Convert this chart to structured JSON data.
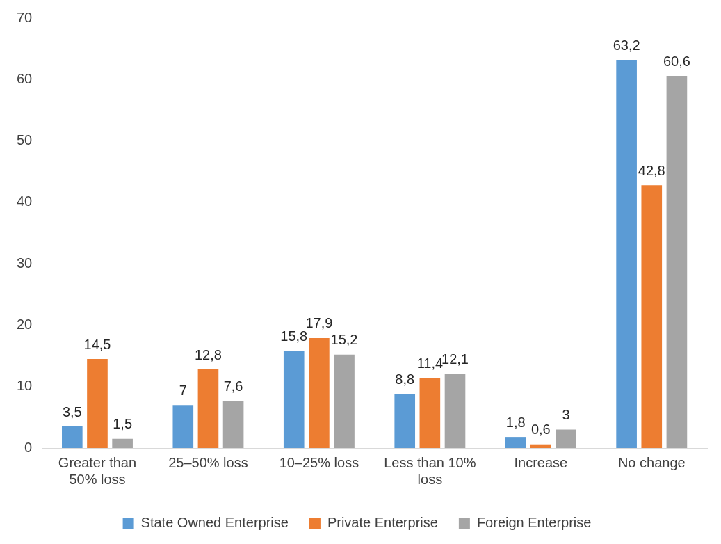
{
  "chart_data": {
    "type": "bar",
    "categories": [
      "Greater than 50% loss",
      "25–50% loss",
      "10–25% loss",
      "Less than 10% loss",
      "Increase",
      "No change"
    ],
    "series": [
      {
        "name": "State Owned Enterprise",
        "color": "#5b9bd5",
        "values": [
          3.5,
          7,
          15.8,
          8.8,
          1.8,
          63.2
        ],
        "value_labels": [
          "3,5",
          "7",
          "15,8",
          "8,8",
          "1,8",
          "63,2"
        ]
      },
      {
        "name": "Private Enterprise",
        "color": "#ed7d31",
        "values": [
          14.5,
          12.8,
          17.9,
          11.4,
          0.6,
          42.8
        ],
        "value_labels": [
          "14,5",
          "12,8",
          "17,9",
          "11,4",
          "0,6",
          "42,8"
        ]
      },
      {
        "name": "Foreign Enterprise",
        "color": "#a5a5a5",
        "values": [
          1.5,
          7.6,
          15.2,
          12.1,
          3,
          60.6
        ],
        "value_labels": [
          "1,5",
          "7,6",
          "15,2",
          "12,1",
          "3",
          "60,6"
        ]
      }
    ],
    "ylim": [
      0,
      70
    ],
    "yticks": [
      0,
      10,
      20,
      30,
      40,
      50,
      60,
      70
    ],
    "grid": false,
    "legend": "bottom"
  }
}
